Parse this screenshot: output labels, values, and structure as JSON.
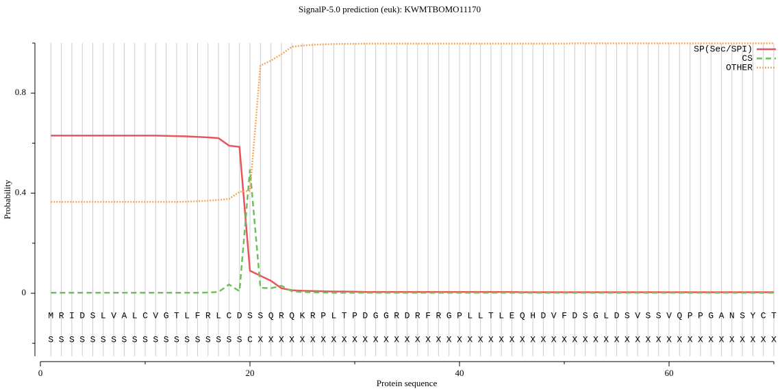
{
  "chart_data": {
    "type": "line",
    "title": "SignalP-5.0 prediction (euk):  KWMTBOMO11170",
    "y_label": "Probability",
    "x_label": "Protein sequence",
    "x": [
      1,
      2,
      3,
      4,
      5,
      6,
      7,
      8,
      9,
      10,
      11,
      12,
      13,
      14,
      15,
      16,
      17,
      18,
      19,
      20,
      21,
      22,
      23,
      24,
      25,
      26,
      27,
      28,
      29,
      30,
      31,
      32,
      33,
      34,
      35,
      36,
      37,
      38,
      39,
      40,
      41,
      42,
      43,
      44,
      45,
      46,
      47,
      48,
      49,
      50,
      51,
      52,
      53,
      54,
      55,
      56,
      57,
      58,
      59,
      60,
      61,
      62,
      63,
      64,
      65,
      66,
      67,
      68,
      69,
      70
    ],
    "sequence": "MRIDSLVALCVGTLFRLCDSSQRQKRPLTPDGGRDRFRGPLLTLEQHDVFDSGLDSVSSVQPPGANSYCT",
    "annotation": "SSSSSSSSSSSSSSSSSSSCXXXXXXXXXXXXXXXXXXXXXXXXXXXXXXXXXXXXXXXXXXXXXXXXXX",
    "series": [
      {
        "name": "SP(Sec/SPI)",
        "color": "#e8545a",
        "dash": "solid",
        "values": [
          0.63,
          0.63,
          0.63,
          0.63,
          0.63,
          0.63,
          0.63,
          0.63,
          0.63,
          0.63,
          0.63,
          0.629,
          0.628,
          0.627,
          0.625,
          0.623,
          0.62,
          0.59,
          0.585,
          0.09,
          0.07,
          0.05,
          0.02,
          0.012,
          0.01,
          0.009,
          0.008,
          0.007,
          0.007,
          0.006,
          0.005,
          0.005,
          0.005,
          0.005,
          0.005,
          0.005,
          0.005,
          0.005,
          0.005,
          0.005,
          0.005,
          0.005,
          0.005,
          0.005,
          0.005,
          0.004,
          0.004,
          0.004,
          0.004,
          0.004,
          0.004,
          0.004,
          0.004,
          0.004,
          0.004,
          0.004,
          0.004,
          0.004,
          0.004,
          0.004,
          0.004,
          0.004,
          0.004,
          0.004,
          0.004,
          0.004,
          0.004,
          0.004,
          0.004,
          0.004
        ]
      },
      {
        "name": "CS",
        "color": "#6cbf5a",
        "dash": "dashed",
        "values": [
          0.002,
          0.002,
          0.002,
          0.002,
          0.002,
          0.002,
          0.002,
          0.002,
          0.002,
          0.002,
          0.002,
          0.002,
          0.002,
          0.002,
          0.002,
          0.003,
          0.005,
          0.035,
          0.008,
          0.495,
          0.022,
          0.02,
          0.03,
          0.008,
          0.005,
          0.004,
          0.003,
          0.002,
          0.002,
          0.002,
          0.002,
          0.002,
          0.002,
          0.002,
          0.002,
          0.002,
          0.002,
          0.002,
          0.002,
          0.002,
          0.002,
          0.002,
          0.002,
          0.002,
          0.002,
          0.002,
          0.002,
          0.002,
          0.002,
          0.002,
          0.002,
          0.002,
          0.002,
          0.002,
          0.002,
          0.002,
          0.002,
          0.002,
          0.002,
          0.002,
          0.002,
          0.002,
          0.002,
          0.002,
          0.002,
          0.002,
          0.002,
          0.002,
          0.002,
          0.002
        ]
      },
      {
        "name": "OTHER",
        "color": "#f5a65b",
        "dash": "dotted",
        "values": [
          0.365,
          0.365,
          0.365,
          0.365,
          0.365,
          0.365,
          0.365,
          0.365,
          0.365,
          0.365,
          0.365,
          0.365,
          0.365,
          0.366,
          0.368,
          0.37,
          0.373,
          0.377,
          0.405,
          0.41,
          0.91,
          0.93,
          0.955,
          0.985,
          0.99,
          0.993,
          0.995,
          0.996,
          0.997,
          0.997,
          0.998,
          0.998,
          0.998,
          0.998,
          0.998,
          0.998,
          0.998,
          0.998,
          0.998,
          0.998,
          0.998,
          0.998,
          0.998,
          0.998,
          0.998,
          0.998,
          0.998,
          0.998,
          0.998,
          0.998,
          0.999,
          0.999,
          0.999,
          0.999,
          0.999,
          0.999,
          0.999,
          0.999,
          0.999,
          0.999,
          0.999,
          0.999,
          0.999,
          0.999,
          0.999,
          0.999,
          0.999,
          0.999,
          0.999,
          0.999
        ]
      }
    ],
    "xlim": [
      0,
      70
    ],
    "xticks": [
      0,
      20,
      40,
      60
    ],
    "xminor": [
      10,
      30,
      50,
      70
    ],
    "ylim": [
      -0.25,
      1.0
    ],
    "yticks": [
      0,
      0.4,
      0.8
    ],
    "yminor": [
      -0.2,
      0.2,
      0.6,
      1.0
    ],
    "grid": true,
    "legend": "upper right"
  }
}
